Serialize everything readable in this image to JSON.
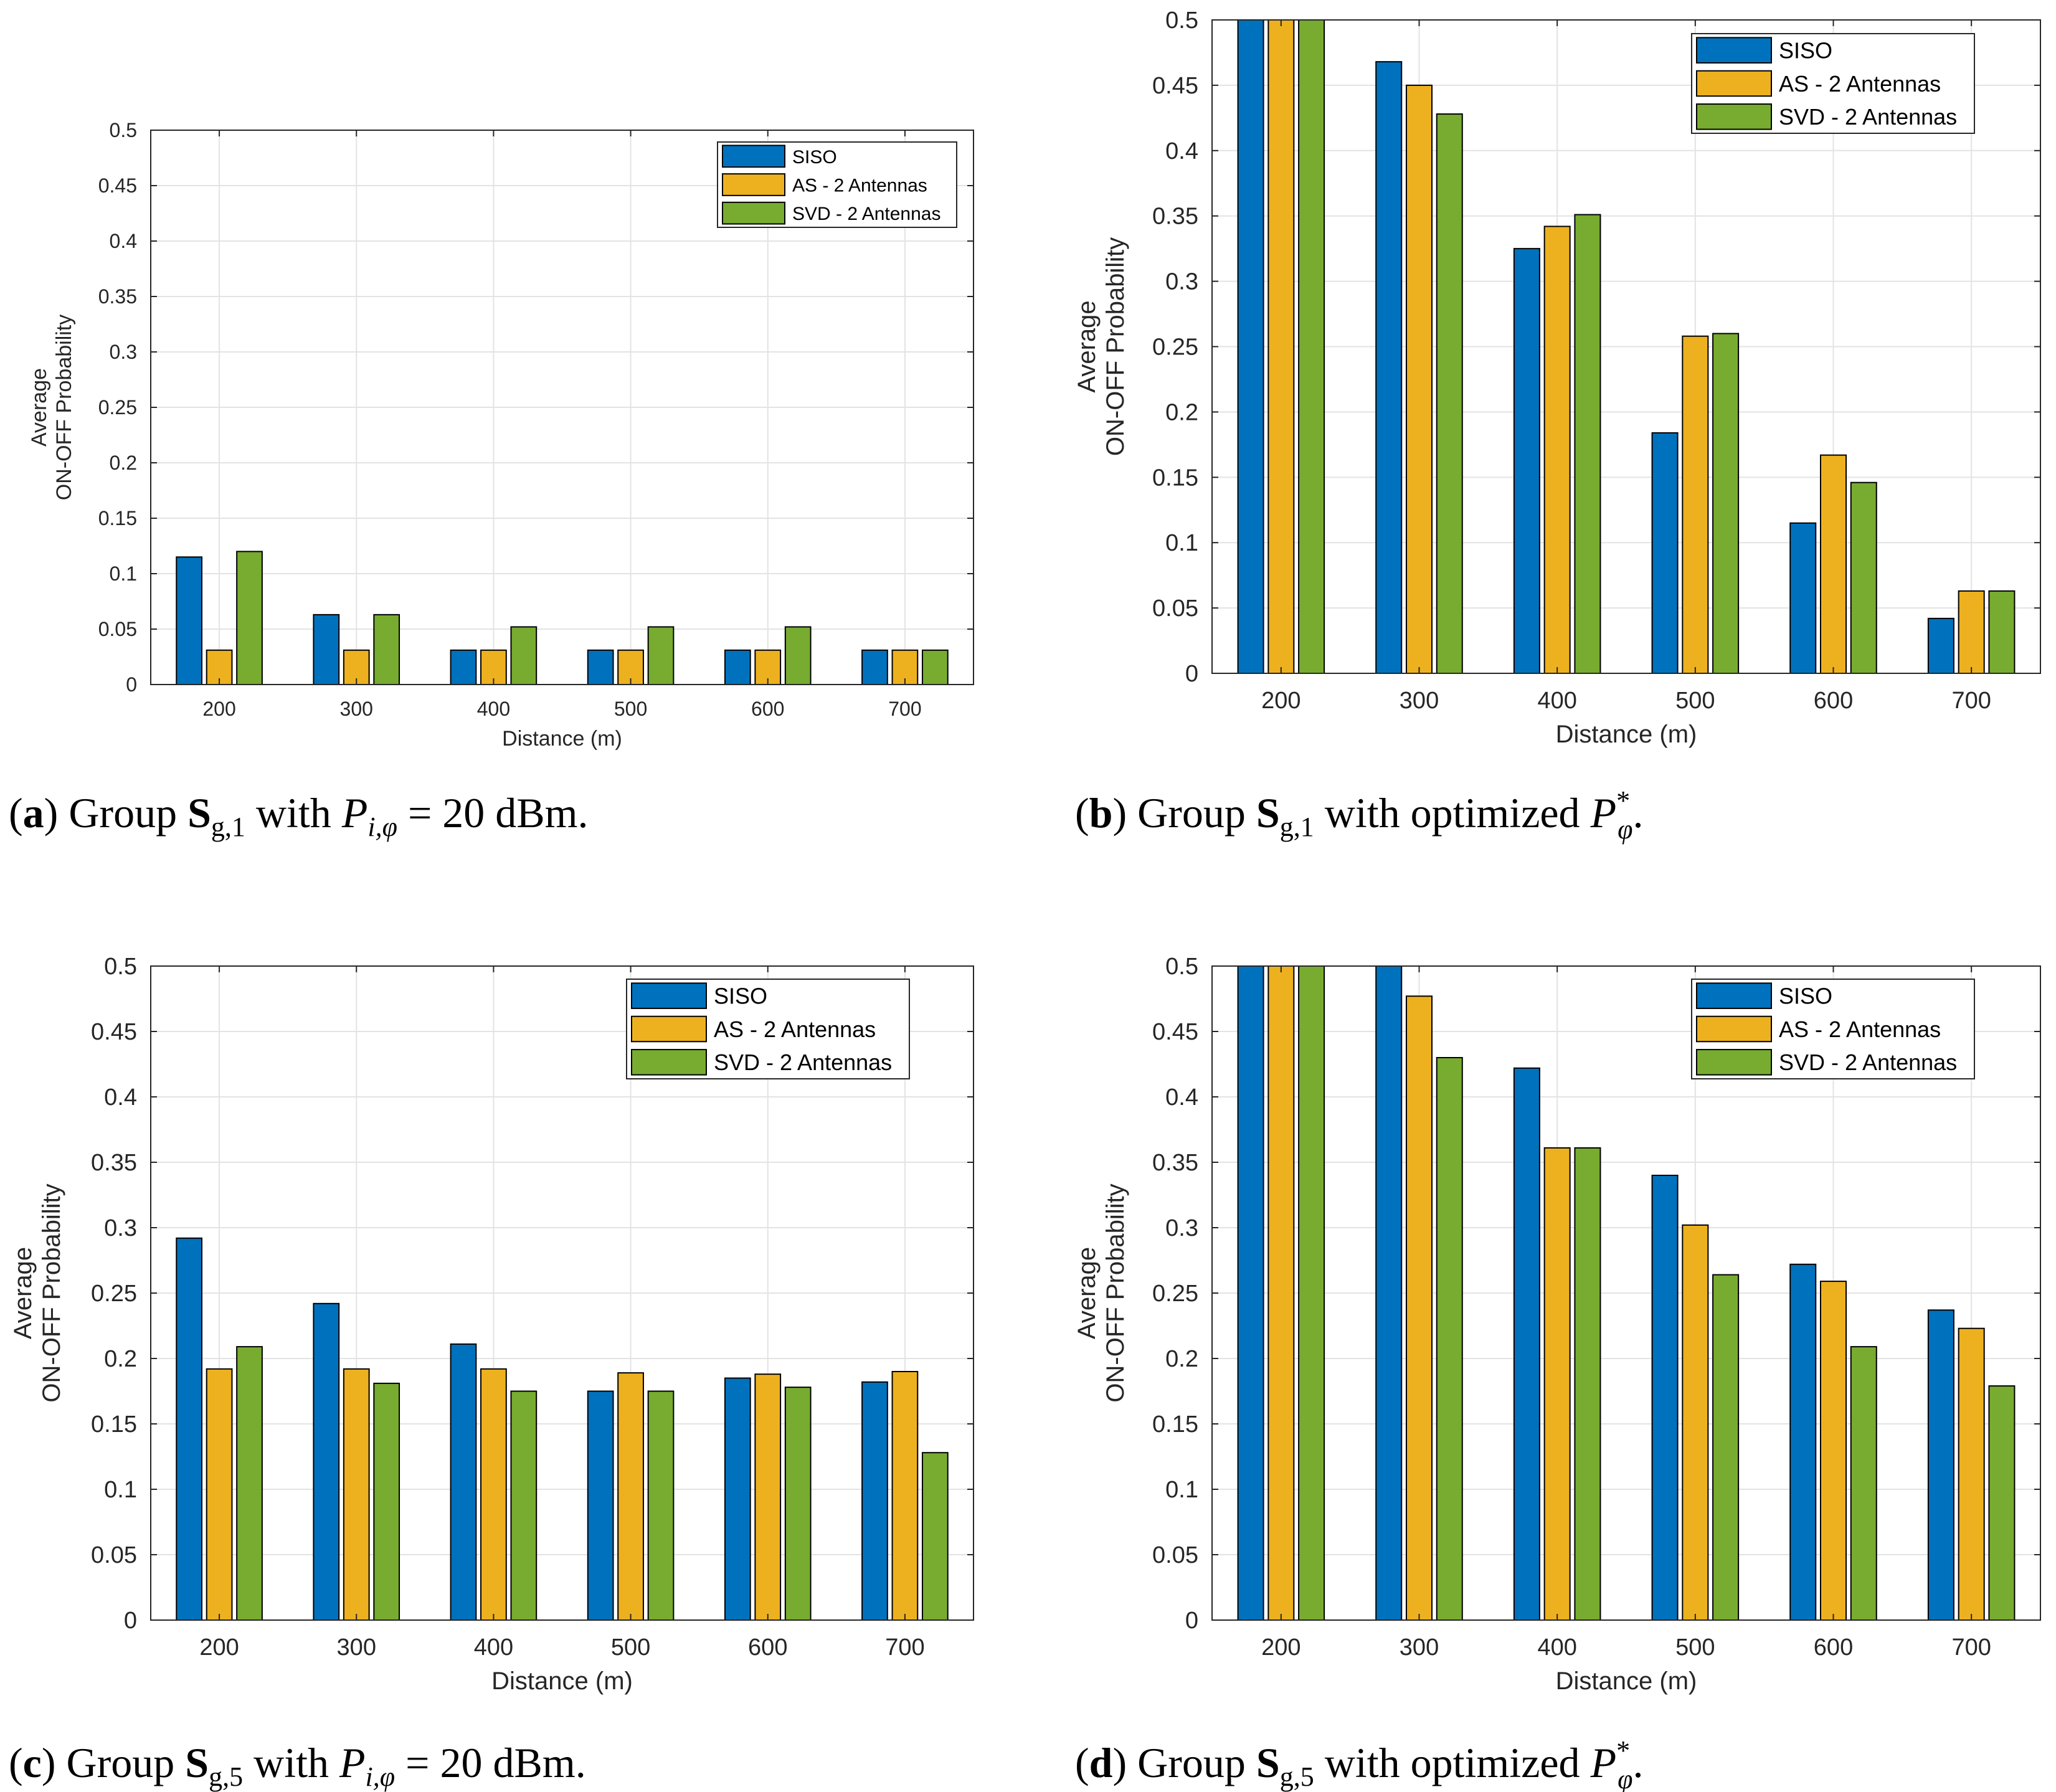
{
  "colors": {
    "siso": "#0072BD",
    "as": "#EDB120",
    "svd": "#77AC30",
    "grid": "#E3E3E3",
    "axis": "#262626"
  },
  "chart_data": [
    {
      "id": "a",
      "type": "bar",
      "categories": [
        "200",
        "300",
        "400",
        "500",
        "600",
        "700"
      ],
      "series": [
        {
          "name": "SISO",
          "values": [
            0.115,
            0.063,
            0.031,
            0.031,
            0.031,
            0.031
          ]
        },
        {
          "name": "AS - 2 Antennas",
          "values": [
            0.031,
            0.031,
            0.031,
            0.031,
            0.031,
            0.031
          ]
        },
        {
          "name": "SVD - 2 Antennas",
          "values": [
            0.12,
            0.063,
            0.052,
            0.052,
            0.052,
            0.031
          ]
        }
      ],
      "xlabel": "Distance (m)",
      "ylabel_line1": "Average",
      "ylabel_line2": "ON-OFF Probability",
      "ylim": [
        0,
        0.5
      ],
      "yticks": [
        "0",
        "0.05",
        "0.1",
        "0.15",
        "0.2",
        "0.25",
        "0.3",
        "0.35",
        "0.4",
        "0.45",
        "0.5"
      ],
      "grid": true,
      "legend": "top-right"
    },
    {
      "id": "b",
      "type": "bar",
      "categories": [
        "200",
        "300",
        "400",
        "500",
        "600",
        "700"
      ],
      "series": [
        {
          "name": "SISO",
          "values": [
            0.5,
            0.468,
            0.325,
            0.184,
            0.115,
            0.042
          ]
        },
        {
          "name": "AS - 2 Antennas",
          "values": [
            0.5,
            0.45,
            0.342,
            0.258,
            0.167,
            0.063
          ]
        },
        {
          "name": "SVD - 2 Antennas",
          "values": [
            0.5,
            0.428,
            0.351,
            0.26,
            0.146,
            0.063
          ]
        }
      ],
      "xlabel": "Distance (m)",
      "ylabel_line1": "Average",
      "ylabel_line2": "ON-OFF Probability",
      "ylim": [
        0,
        0.5
      ],
      "yticks": [
        "0",
        "0.05",
        "0.1",
        "0.15",
        "0.2",
        "0.25",
        "0.3",
        "0.35",
        "0.4",
        "0.45",
        "0.5"
      ],
      "grid": true,
      "legend": "top-right"
    },
    {
      "id": "c",
      "type": "bar",
      "categories": [
        "200",
        "300",
        "400",
        "500",
        "600",
        "700"
      ],
      "series": [
        {
          "name": "SISO",
          "values": [
            0.292,
            0.242,
            0.211,
            0.175,
            0.185,
            0.182
          ]
        },
        {
          "name": "AS - 2 Antennas",
          "values": [
            0.192,
            0.192,
            0.192,
            0.189,
            0.188,
            0.19
          ]
        },
        {
          "name": "SVD - 2 Antennas",
          "values": [
            0.209,
            0.181,
            0.175,
            0.175,
            0.178,
            0.128
          ]
        }
      ],
      "xlabel": "Distance (m)",
      "ylabel_line1": "Average",
      "ylabel_line2": "ON-OFF Probability",
      "ylim": [
        0,
        0.5
      ],
      "yticks": [
        "0",
        "0.05",
        "0.1",
        "0.15",
        "0.2",
        "0.25",
        "0.3",
        "0.35",
        "0.4",
        "0.45",
        "0.5"
      ],
      "grid": true,
      "legend": "top-right"
    },
    {
      "id": "d",
      "type": "bar",
      "categories": [
        "200",
        "300",
        "400",
        "500",
        "600",
        "700"
      ],
      "series": [
        {
          "name": "SISO",
          "values": [
            0.5,
            0.5,
            0.422,
            0.34,
            0.272,
            0.237
          ]
        },
        {
          "name": "AS - 2 Antennas",
          "values": [
            0.5,
            0.477,
            0.361,
            0.302,
            0.259,
            0.223
          ]
        },
        {
          "name": "SVD - 2 Antennas",
          "values": [
            0.5,
            0.43,
            0.361,
            0.264,
            0.209,
            0.179
          ]
        }
      ],
      "xlabel": "Distance (m)",
      "ylabel_line1": "Average",
      "ylabel_line2": "ON-OFF Probability",
      "ylim": [
        0,
        0.5
      ],
      "yticks": [
        "0",
        "0.05",
        "0.1",
        "0.15",
        "0.2",
        "0.25",
        "0.3",
        "0.35",
        "0.4",
        "0.45",
        "0.5"
      ],
      "grid": true,
      "legend": "top-right"
    }
  ],
  "captions": {
    "a": {
      "tag": "a",
      "group": "Group",
      "S": "S",
      "sub": "g,1",
      "with": "with",
      "P": "P",
      "psub": "i,φ",
      "eq": "= 20 dBm."
    },
    "b": {
      "tag": "b",
      "group": "Group",
      "S": "S",
      "sub": "g,1",
      "with": "with optimized",
      "P": "P",
      "psub": "φ",
      "sup": "*",
      "end": "."
    },
    "c": {
      "tag": "c",
      "group": "Group",
      "S": "S",
      "sub": "g,5",
      "with": "with",
      "P": "P",
      "psub": "i,φ",
      "eq": "= 20 dBm."
    },
    "d": {
      "tag": "d",
      "group": "Group",
      "S": "S",
      "sub": "g,5",
      "with": "with optimized",
      "P": "P",
      "psub": "φ",
      "sup": "*",
      "end": "."
    }
  }
}
